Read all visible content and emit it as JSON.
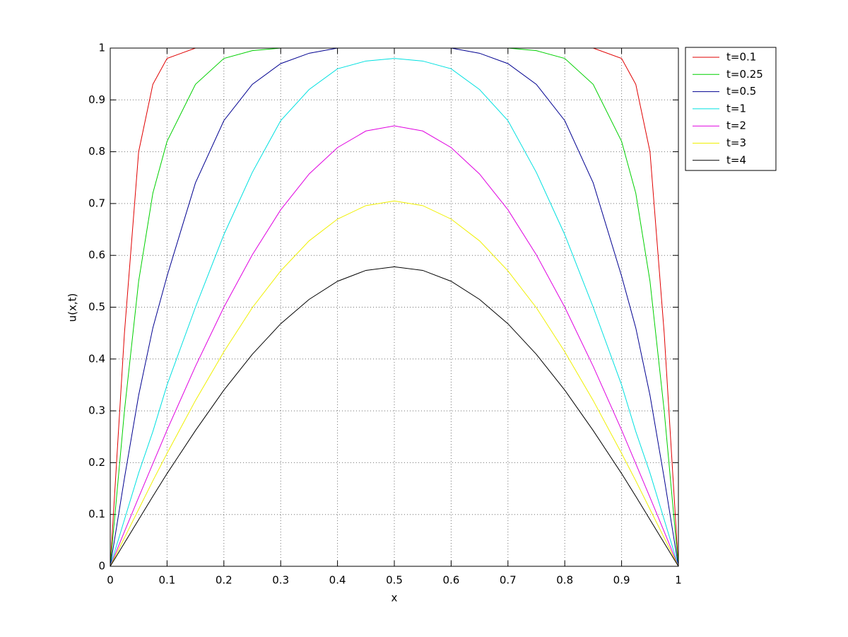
{
  "chart_data": {
    "type": "line",
    "xlabel": "x",
    "ylabel": "u(x,t)",
    "x": [
      0,
      0.025,
      0.05,
      0.075,
      0.1,
      0.15,
      0.2,
      0.25,
      0.3,
      0.35,
      0.4,
      0.45,
      0.5,
      0.55,
      0.6,
      0.65,
      0.7,
      0.75,
      0.8,
      0.85,
      0.9,
      0.925,
      0.95,
      0.975,
      1
    ],
    "series": [
      {
        "name": "t=0.1",
        "color": "#e00000",
        "values": [
          0,
          0.45,
          0.8,
          0.93,
          0.98,
          1,
          1,
          1,
          1,
          1,
          1,
          1,
          1,
          1,
          1,
          1,
          1,
          1,
          1,
          1,
          0.98,
          0.93,
          0.8,
          0.45,
          0
        ]
      },
      {
        "name": "t=0.25",
        "color": "#00d000",
        "values": [
          0,
          0.3,
          0.55,
          0.72,
          0.82,
          0.93,
          0.98,
          0.995,
          1,
          1,
          1,
          1,
          1,
          1,
          1,
          1,
          1,
          0.995,
          0.98,
          0.93,
          0.82,
          0.72,
          0.55,
          0.3,
          0
        ]
      },
      {
        "name": "t=0.5",
        "color": "#000090",
        "values": [
          0,
          0.17,
          0.33,
          0.46,
          0.56,
          0.74,
          0.86,
          0.93,
          0.97,
          0.99,
          1,
          1,
          1,
          1,
          1,
          0.99,
          0.97,
          0.93,
          0.86,
          0.74,
          0.56,
          0.46,
          0.33,
          0.17,
          0
        ]
      },
      {
        "name": "t=1",
        "color": "#00e0e0",
        "values": [
          0,
          0.09,
          0.18,
          0.26,
          0.35,
          0.5,
          0.64,
          0.76,
          0.86,
          0.92,
          0.96,
          0.975,
          0.98,
          0.975,
          0.96,
          0.92,
          0.86,
          0.76,
          0.64,
          0.5,
          0.35,
          0.26,
          0.18,
          0.09,
          0
        ]
      },
      {
        "name": "t=2",
        "color": "#e000e0",
        "values": [
          0,
          0.067,
          0.133,
          0.198,
          0.263,
          0.386,
          0.5,
          0.601,
          0.688,
          0.757,
          0.808,
          0.84,
          0.85,
          0.84,
          0.808,
          0.757,
          0.688,
          0.601,
          0.5,
          0.386,
          0.263,
          0.198,
          0.133,
          0.067,
          0
        ]
      },
      {
        "name": "t=3",
        "color": "#f0f000",
        "values": [
          0,
          0.055,
          0.11,
          0.165,
          0.218,
          0.32,
          0.414,
          0.499,
          0.57,
          0.628,
          0.67,
          0.696,
          0.705,
          0.696,
          0.67,
          0.628,
          0.57,
          0.499,
          0.414,
          0.32,
          0.218,
          0.165,
          0.11,
          0.055,
          0
        ]
      },
      {
        "name": "t=4",
        "color": "#000000",
        "values": [
          0,
          0.045,
          0.09,
          0.135,
          0.179,
          0.262,
          0.34,
          0.409,
          0.468,
          0.515,
          0.55,
          0.571,
          0.578,
          0.571,
          0.55,
          0.515,
          0.468,
          0.409,
          0.34,
          0.262,
          0.179,
          0.135,
          0.09,
          0.045,
          0
        ]
      }
    ],
    "xlim": [
      0,
      1
    ],
    "xticks": [
      0,
      0.1,
      0.2,
      0.3,
      0.4,
      0.5,
      0.6,
      0.7,
      0.8,
      0.9,
      1
    ],
    "ylim": [
      0,
      1
    ],
    "yticks": [
      0,
      0.1,
      0.2,
      0.3,
      0.4,
      0.5,
      0.6,
      0.7,
      0.8,
      0.9,
      1
    ],
    "grid": true,
    "legend": "northeastoutside"
  }
}
